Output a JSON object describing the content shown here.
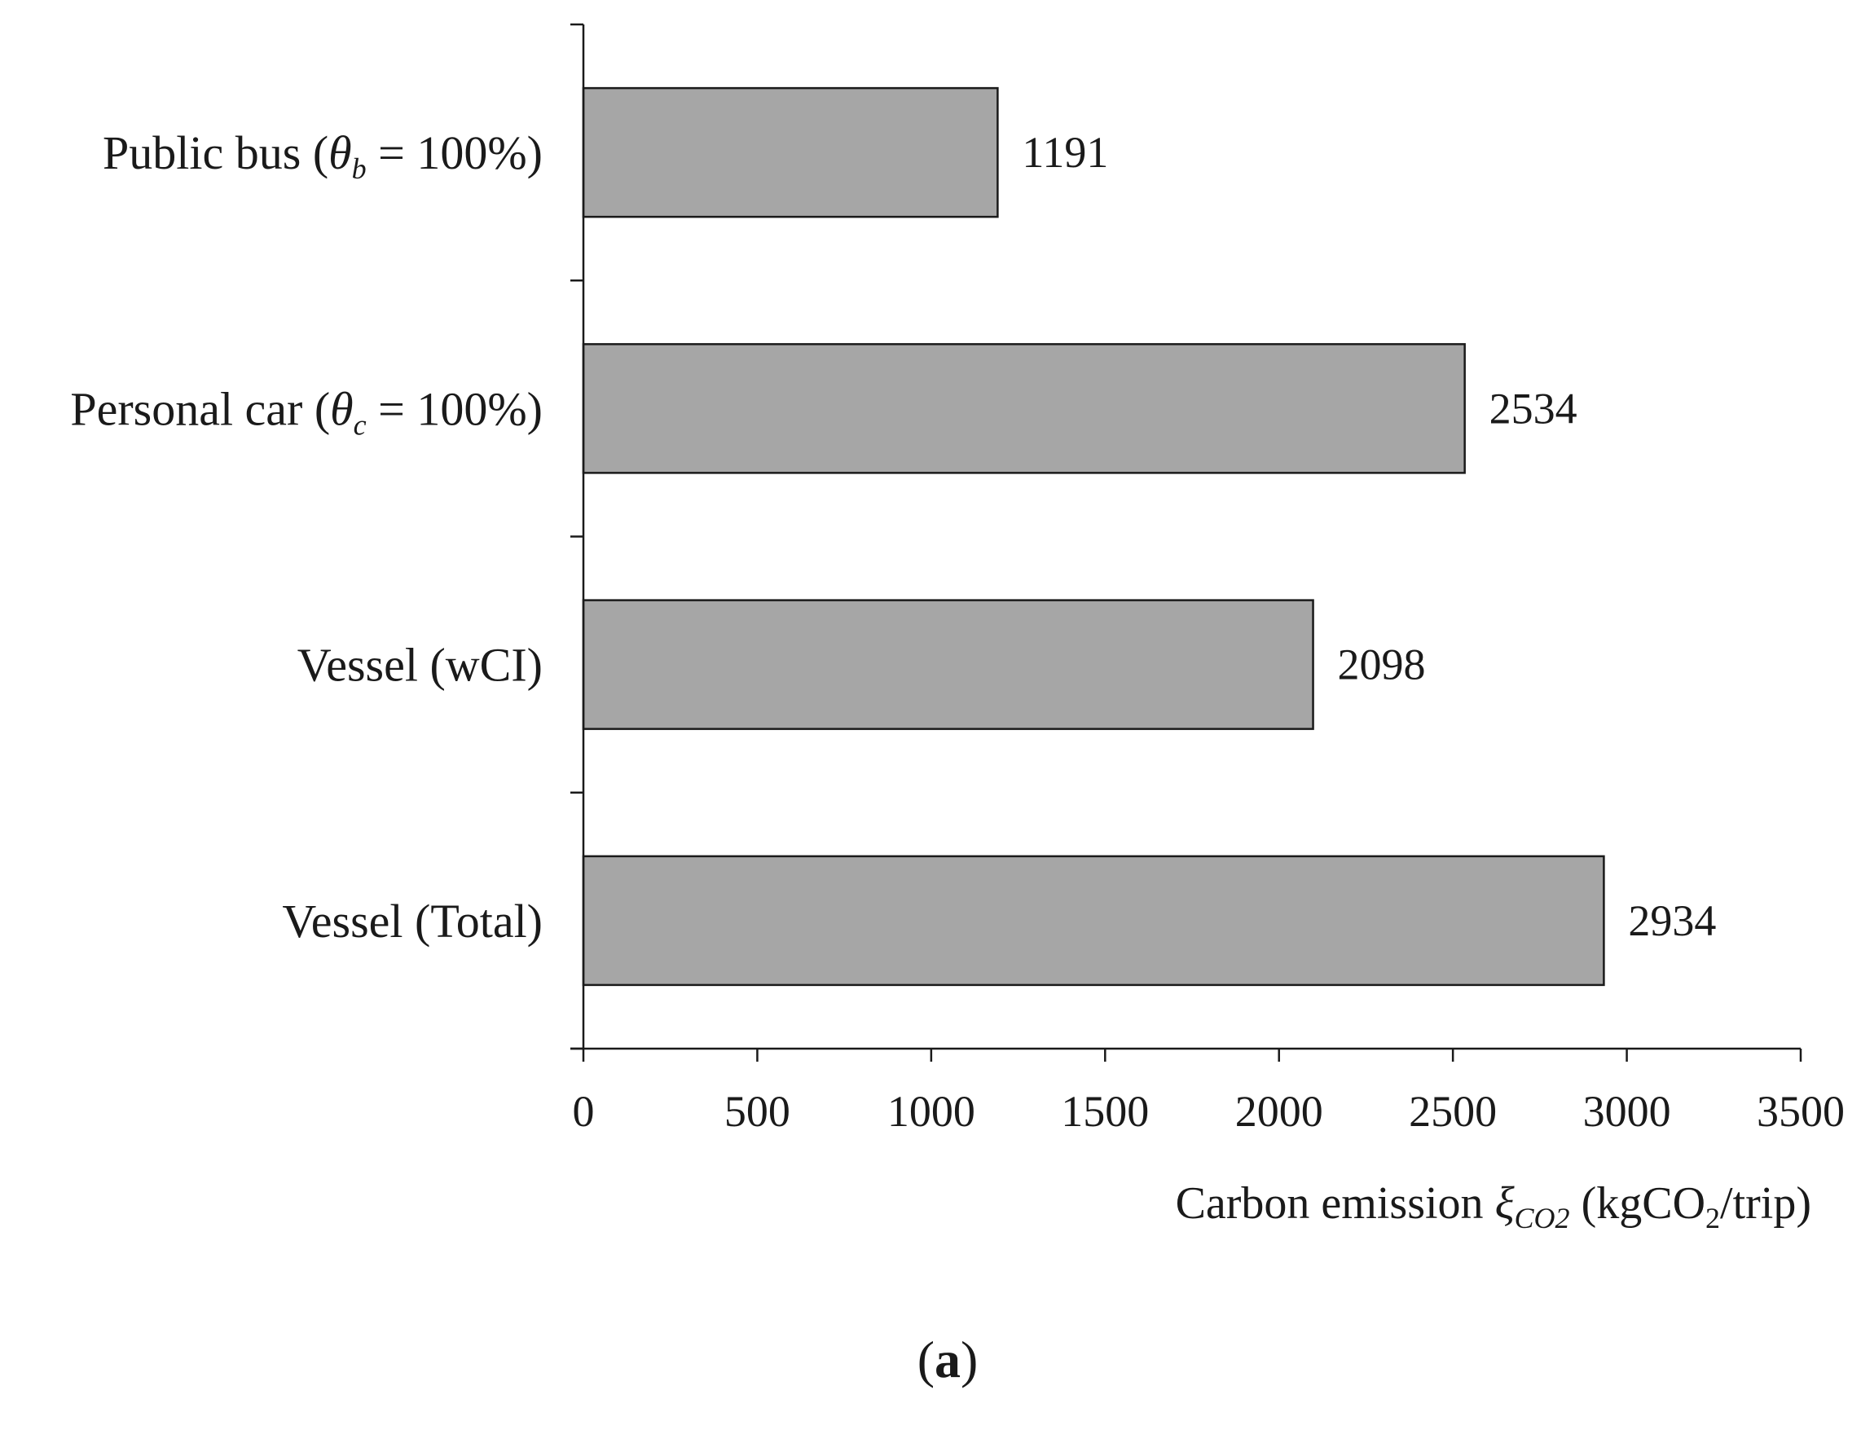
{
  "chart_data": {
    "type": "bar",
    "orientation": "horizontal",
    "categories": [
      {
        "name": "Public bus",
        "symbol": "θ",
        "subscript": "b",
        "suffix": " = 100%)"
      },
      {
        "name": "Personal car",
        "symbol": "θ",
        "subscript": "c",
        "suffix": " = 100%)"
      },
      {
        "name": "Vessel (wCI)",
        "symbol": "",
        "subscript": "",
        "suffix": ""
      },
      {
        "name": "Vessel (Total)",
        "symbol": "",
        "subscript": "",
        "suffix": ""
      }
    ],
    "values": [
      1191,
      2534,
      2098,
      2934
    ],
    "xlim": [
      0,
      3500
    ],
    "xticks": [
      0,
      500,
      1000,
      1500,
      2000,
      2500,
      3000,
      3500
    ],
    "xlabel": {
      "prefix": "Carbon emission ",
      "symbol": "ξ",
      "symbol_subscript": "CO2",
      "unit_open": " (kgCO",
      "unit_subscript": "2",
      "unit_close": "/trip)"
    },
    "title": "",
    "grid": false,
    "legend": "none",
    "data_labels": true,
    "colors": {
      "bar_fill": "#a6a6a6",
      "bar_stroke": "#1a1a1a",
      "axis": "#1a1a1a"
    }
  },
  "panel_label": {
    "open": "(",
    "letter": "a",
    "close": ")"
  }
}
